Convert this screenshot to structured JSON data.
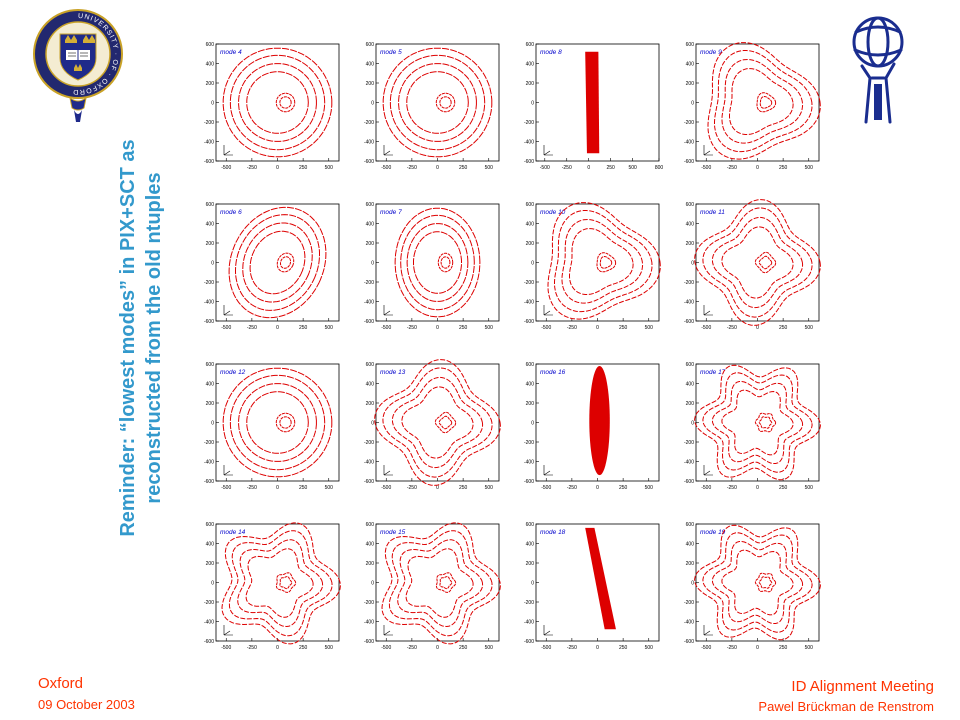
{
  "title_line1": "Reminder: “lowest modes” in PIX+SCT as",
  "title_line2": "reconstructed from the old ntuples",
  "footer": {
    "place": "Oxford",
    "date": "09 October 2003",
    "meeting": "ID Alignment Meeting",
    "author": "Pawel Brückman de Renstrom"
  },
  "logos": {
    "left": "university-of-oxford-crest",
    "right": "atlas-logo",
    "left_text": "UNIVERSITY · OF · OXFORD"
  },
  "colors": {
    "title": "#3399cc",
    "footer": "#ff3300",
    "plot": "#dd0000",
    "label": "#0000cc"
  },
  "chart_data": [
    {
      "type": "scatter",
      "label": "mode 4",
      "shape": "rings",
      "sides": 0,
      "xlim": [
        -600,
        600
      ],
      "ylim": [
        -600,
        600
      ],
      "xticks": [
        -500,
        -250,
        0,
        250,
        500
      ],
      "yticks": [
        -600,
        -400,
        -200,
        0,
        200,
        400,
        600
      ]
    },
    {
      "type": "scatter",
      "label": "mode 5",
      "shape": "rings",
      "sides": 0,
      "xlim": [
        -600,
        600
      ],
      "ylim": [
        -600,
        600
      ],
      "xticks": [
        -500,
        -250,
        0,
        250,
        500
      ],
      "yticks": [
        -600,
        -400,
        -200,
        0,
        200,
        400,
        600
      ]
    },
    {
      "type": "scatter",
      "label": "mode 8",
      "shape": "band-vertical",
      "sides": 0,
      "xlim": [
        -600,
        800
      ],
      "ylim": [
        -600,
        600
      ],
      "xticks": [
        -500,
        -250,
        0,
        250,
        500,
        800
      ],
      "yticks": [
        -600,
        -400,
        -200,
        0,
        200,
        400,
        600
      ]
    },
    {
      "type": "scatter",
      "label": "mode 9",
      "shape": "polygon",
      "sides": 3,
      "xlim": [
        -600,
        600
      ],
      "ylim": [
        -600,
        600
      ],
      "xticks": [
        -500,
        -250,
        0,
        250,
        500
      ],
      "yticks": [
        -600,
        -400,
        -200,
        0,
        200,
        400,
        600
      ]
    },
    {
      "type": "scatter",
      "label": "mode 6",
      "shape": "ellipse-tilt",
      "sides": 0,
      "xlim": [
        -600,
        600
      ],
      "ylim": [
        -600,
        600
      ],
      "xticks": [
        -500,
        -250,
        0,
        250,
        500
      ],
      "yticks": [
        -600,
        -400,
        -200,
        0,
        200,
        400,
        600
      ]
    },
    {
      "type": "scatter",
      "label": "mode 7",
      "shape": "ellipse-vertical",
      "sides": 0,
      "xlim": [
        -600,
        600
      ],
      "ylim": [
        -600,
        600
      ],
      "xticks": [
        -500,
        -250,
        0,
        250,
        500
      ],
      "yticks": [
        -600,
        -400,
        -200,
        0,
        200,
        400,
        600
      ]
    },
    {
      "type": "scatter",
      "label": "mode 10",
      "shape": "polygon",
      "sides": 3,
      "xlim": [
        -600,
        600
      ],
      "ylim": [
        -600,
        600
      ],
      "xticks": [
        -500,
        -250,
        0,
        250,
        500
      ],
      "yticks": [
        -600,
        -400,
        -200,
        0,
        200,
        400,
        600
      ]
    },
    {
      "type": "scatter",
      "label": "mode 11",
      "shape": "polygon",
      "sides": 4,
      "xlim": [
        -600,
        600
      ],
      "ylim": [
        -600,
        600
      ],
      "xticks": [
        -500,
        -250,
        0,
        250,
        500
      ],
      "yticks": [
        -600,
        -400,
        -200,
        0,
        200,
        400,
        600
      ]
    },
    {
      "type": "scatter",
      "label": "mode 12",
      "shape": "rings",
      "sides": 0,
      "xlim": [
        -600,
        600
      ],
      "ylim": [
        -600,
        600
      ],
      "xticks": [
        -500,
        -250,
        0,
        250,
        500
      ],
      "yticks": [
        -600,
        -400,
        -200,
        0,
        200,
        400,
        600
      ]
    },
    {
      "type": "scatter",
      "label": "mode 13",
      "shape": "polygon",
      "sides": 4,
      "xlim": [
        -600,
        600
      ],
      "ylim": [
        -600,
        600
      ],
      "xticks": [
        -500,
        -250,
        0,
        250,
        500
      ],
      "yticks": [
        -600,
        -400,
        -200,
        0,
        200,
        400,
        600
      ]
    },
    {
      "type": "scatter",
      "label": "mode 16",
      "shape": "band-oval",
      "sides": 0,
      "xlim": [
        -600,
        600
      ],
      "ylim": [
        -600,
        600
      ],
      "xticks": [
        -500,
        -250,
        0,
        250,
        500
      ],
      "yticks": [
        -600,
        -400,
        -200,
        0,
        200,
        400,
        600
      ]
    },
    {
      "type": "scatter",
      "label": "mode 17",
      "shape": "polygon",
      "sides": 6,
      "xlim": [
        -600,
        600
      ],
      "ylim": [
        -600,
        600
      ],
      "xticks": [
        -500,
        -250,
        0,
        250,
        500
      ],
      "yticks": [
        -600,
        -400,
        -200,
        0,
        200,
        400,
        600
      ]
    },
    {
      "type": "scatter",
      "label": "mode 14",
      "shape": "polygon",
      "sides": 5,
      "xlim": [
        -600,
        600
      ],
      "ylim": [
        -600,
        600
      ],
      "xticks": [
        -500,
        -250,
        0,
        250,
        500
      ],
      "yticks": [
        -600,
        -400,
        -200,
        0,
        200,
        400,
        600
      ]
    },
    {
      "type": "scatter",
      "label": "mode 15",
      "shape": "polygon",
      "sides": 5,
      "xlim": [
        -600,
        600
      ],
      "ylim": [
        -600,
        600
      ],
      "xticks": [
        -500,
        -250,
        0,
        250,
        500
      ],
      "yticks": [
        -600,
        -400,
        -200,
        0,
        200,
        400,
        600
      ]
    },
    {
      "type": "scatter",
      "label": "mode 18",
      "shape": "band-tilt",
      "sides": 0,
      "xlim": [
        -600,
        600
      ],
      "ylim": [
        -600,
        600
      ],
      "xticks": [
        -500,
        -250,
        0,
        250,
        500
      ],
      "yticks": [
        -600,
        -400,
        -200,
        0,
        200,
        400,
        600
      ]
    },
    {
      "type": "scatter",
      "label": "mode 19",
      "shape": "polygon",
      "sides": 6,
      "xlim": [
        -600,
        600
      ],
      "ylim": [
        -600,
        600
      ],
      "xticks": [
        -500,
        -250,
        0,
        250,
        500
      ],
      "yticks": [
        -600,
        -400,
        -200,
        0,
        200,
        400,
        600
      ]
    }
  ]
}
